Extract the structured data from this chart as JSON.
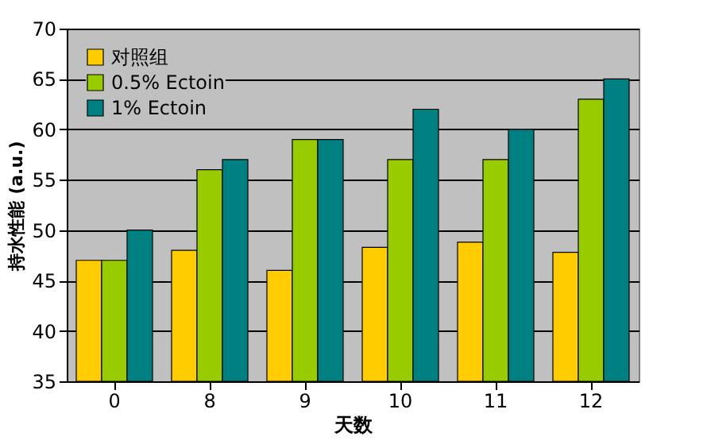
{
  "chart_data": {
    "type": "bar",
    "xlabel": "天数",
    "ylabel": "持水性能 (a.u.)",
    "categories": [
      "0",
      "8",
      "9",
      "10",
      "11",
      "12"
    ],
    "series": [
      {
        "name": "对照组",
        "color": "#ffcc00",
        "values": [
          47,
          48,
          46,
          48.3,
          48.8,
          47.8
        ]
      },
      {
        "name": "0.5% Ectoin",
        "color": "#99cc00",
        "values": [
          47,
          56,
          59,
          57,
          57,
          63
        ]
      },
      {
        "name": "1% Ectoin",
        "color": "#008080",
        "values": [
          50,
          57,
          59,
          62,
          60,
          65
        ]
      }
    ],
    "ylim": [
      35,
      70
    ],
    "yticks": [
      35,
      40,
      45,
      50,
      55,
      60,
      65,
      70
    ],
    "grid": "y",
    "legend": "top left"
  }
}
